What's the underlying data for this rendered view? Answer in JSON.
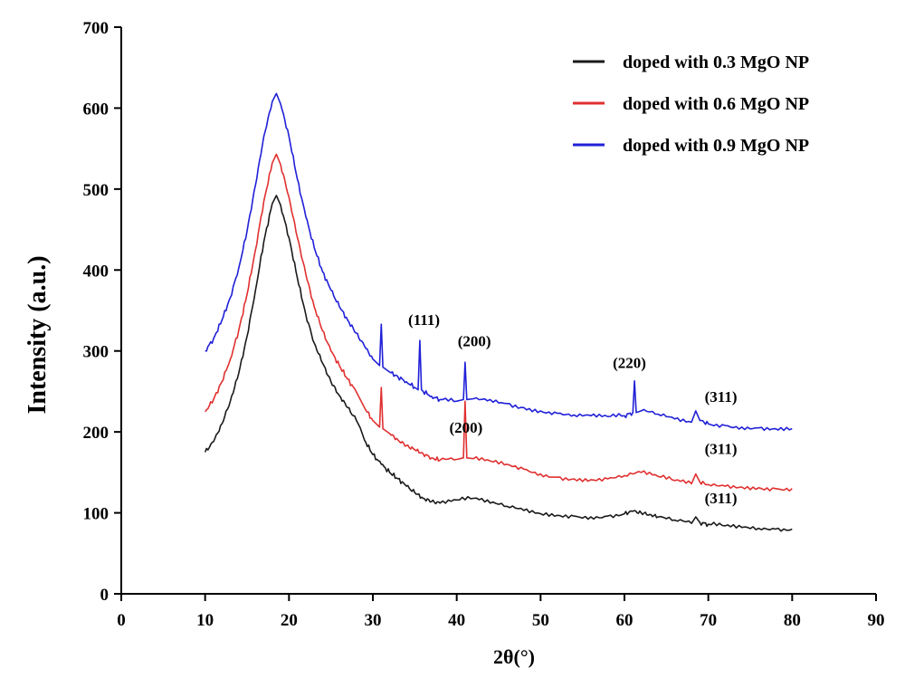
{
  "chart_data": {
    "type": "line",
    "title": "",
    "xlabel": "2θ(°)",
    "ylabel": "Intensity (a.u.)",
    "xlim": [
      0,
      90
    ],
    "ylim": [
      0,
      700
    ],
    "xticks": [
      0,
      10,
      20,
      30,
      40,
      50,
      60,
      70,
      80,
      90
    ],
    "yticks": [
      0,
      100,
      200,
      300,
      400,
      500,
      600,
      700
    ],
    "xtick_labels": [
      "0",
      "10",
      "20",
      "30",
      "40",
      "50",
      "60",
      "70",
      "80",
      "90"
    ],
    "ytick_labels": [
      "0",
      "100",
      "200",
      "300",
      "400",
      "500",
      "600",
      "700"
    ],
    "grid": false,
    "legend_position": "top-right",
    "colors": {
      "axis": "#000000",
      "background": "#ffffff"
    },
    "series": [
      {
        "name": "doped with 0.3 MgO NP",
        "color": "#1a1a1a",
        "x": [
          10,
          11,
          12,
          13,
          14,
          15,
          16,
          17,
          18,
          18.5,
          19,
          20,
          21,
          22,
          23,
          24,
          25,
          26,
          27,
          28,
          28.5,
          29,
          30,
          31,
          32,
          33,
          34,
          35,
          36,
          37,
          38,
          40,
          42,
          44,
          46,
          48,
          50,
          52,
          54,
          56,
          58,
          60,
          61,
          62,
          63,
          64,
          66,
          68,
          68.5,
          69,
          70,
          72,
          74,
          76,
          78,
          80
        ],
        "values": [
          175,
          188,
          210,
          238,
          272,
          318,
          375,
          435,
          482,
          492,
          480,
          440,
          390,
          345,
          310,
          285,
          262,
          245,
          230,
          215,
          205,
          190,
          172,
          160,
          150,
          142,
          133,
          125,
          118,
          114,
          112,
          116,
          118,
          112,
          108,
          103,
          99,
          97,
          96,
          95,
          96,
          99,
          102,
          100,
          98,
          95,
          91,
          87,
          95,
          88,
          86,
          84,
          82,
          81,
          80,
          80
        ]
      },
      {
        "name": "doped with 0.6 MgO NP",
        "color": "#e03030",
        "x": [
          10,
          11,
          12,
          13,
          14,
          15,
          16,
          17,
          18,
          18.5,
          19,
          20,
          21,
          22,
          23,
          24,
          25,
          26,
          27,
          28,
          28.5,
          29,
          30,
          30.8,
          31.0,
          31.2,
          32,
          33,
          34,
          35,
          36,
          37,
          38,
          40,
          40.8,
          41.0,
          41.2,
          42,
          44,
          46,
          48,
          50,
          52,
          54,
          56,
          58,
          60,
          62,
          64,
          66,
          68,
          68.5,
          69,
          70,
          72,
          74,
          76,
          78,
          80
        ],
        "values": [
          225,
          240,
          262,
          290,
          325,
          370,
          425,
          485,
          532,
          543,
          530,
          490,
          440,
          395,
          355,
          325,
          300,
          282,
          265,
          250,
          240,
          230,
          214,
          206,
          255,
          204,
          198,
          190,
          183,
          178,
          173,
          168,
          165,
          166,
          168,
          238,
          168,
          167,
          164,
          160,
          154,
          148,
          144,
          142,
          141,
          142,
          146,
          150,
          145,
          140,
          136,
          148,
          138,
          135,
          133,
          132,
          131,
          130,
          130
        ]
      },
      {
        "name": "doped with 0.9 MgO NP",
        "color": "#2020d8",
        "x": [
          10,
          11,
          12,
          13,
          14,
          15,
          16,
          17,
          18,
          18.5,
          19,
          20,
          21,
          22,
          23,
          24,
          25,
          26,
          27,
          28,
          29,
          30,
          30.8,
          31.0,
          31.2,
          32,
          33,
          34,
          35,
          35.4,
          35.6,
          35.8,
          36,
          37,
          38,
          40,
          40.8,
          41.0,
          41.2,
          42,
          44,
          46,
          48,
          50,
          52,
          54,
          56,
          58,
          60,
          61.0,
          61.2,
          61.4,
          62,
          64,
          66,
          68,
          68.5,
          69,
          70,
          72,
          74,
          76,
          78,
          80
        ],
        "values": [
          300,
          315,
          338,
          366,
          402,
          448,
          505,
          565,
          608,
          618,
          605,
          565,
          512,
          466,
          428,
          398,
          375,
          355,
          338,
          322,
          306,
          290,
          282,
          333,
          280,
          274,
          268,
          262,
          255,
          252,
          313,
          252,
          250,
          244,
          240,
          238,
          240,
          286,
          240,
          241,
          240,
          235,
          230,
          226,
          223,
          221,
          220,
          219,
          220,
          224,
          263,
          224,
          226,
          222,
          216,
          212,
          226,
          214,
          210,
          208,
          206,
          205,
          204,
          204
        ]
      }
    ],
    "annotations": [
      {
        "text": "(111)",
        "x": 36.1,
        "y": 332
      },
      {
        "text": "(200)",
        "x": 42.1,
        "y": 306
      },
      {
        "text": "(220)",
        "x": 60.6,
        "y": 279
      },
      {
        "text": "(311)",
        "x": 71.5,
        "y": 237
      },
      {
        "text": "(200)",
        "x": 41.1,
        "y": 199
      },
      {
        "text": "(311)",
        "x": 71.5,
        "y": 173
      },
      {
        "text": "(311)",
        "x": 71.5,
        "y": 112
      }
    ]
  }
}
